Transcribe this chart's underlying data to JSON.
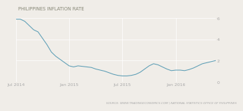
{
  "title": "PHILIPPINES INFLATION RATE",
  "source": "SOURCE: WWW.TRADINGECONOMICS.COM | NATIONAL STATISTICS OFFICE OF PHILIPPINES",
  "background_color": "#f0ede8",
  "plot_bg_color": "#f0ede8",
  "line_color": "#5b9db5",
  "grid_color": "#ffffff",
  "ylim": [
    0,
    6
  ],
  "yticks": [
    0,
    2,
    4,
    6
  ],
  "xtick_labels": [
    "Jul 2014",
    "Jan 2015",
    "Jul 2015",
    "Jan 2016"
  ],
  "xtick_positions": [
    0,
    6,
    12,
    18
  ],
  "xlim": [
    0,
    22.5
  ],
  "data_x": [
    0,
    0.5,
    1,
    1.5,
    2,
    2.5,
    3,
    3.5,
    4,
    4.5,
    5,
    5.5,
    6,
    6.5,
    7,
    7.5,
    8,
    8.5,
    9,
    9.5,
    10,
    10.5,
    11,
    11.5,
    12,
    12.5,
    13,
    13.5,
    14,
    14.5,
    15,
    15.5,
    16,
    16.5,
    17,
    17.5,
    18,
    18.5,
    19,
    19.5,
    20,
    20.5,
    21,
    21.5,
    22,
    22.5
  ],
  "data_y": [
    5.9,
    5.9,
    5.7,
    5.3,
    4.9,
    4.7,
    4.1,
    3.5,
    2.8,
    2.4,
    2.1,
    1.8,
    1.5,
    1.4,
    1.5,
    1.45,
    1.4,
    1.35,
    1.2,
    1.1,
    1.0,
    0.85,
    0.7,
    0.6,
    0.55,
    0.55,
    0.6,
    0.7,
    0.9,
    1.2,
    1.5,
    1.7,
    1.6,
    1.4,
    1.2,
    1.05,
    1.1,
    1.1,
    1.05,
    1.15,
    1.3,
    1.5,
    1.7,
    1.8,
    1.9,
    2.0
  ],
  "title_fontsize": 4.8,
  "source_fontsize": 3.0,
  "tick_fontsize": 4.5,
  "line_width": 0.75,
  "title_color": "#888877",
  "tick_color": "#aaaaaa",
  "source_color": "#aaaaaa"
}
